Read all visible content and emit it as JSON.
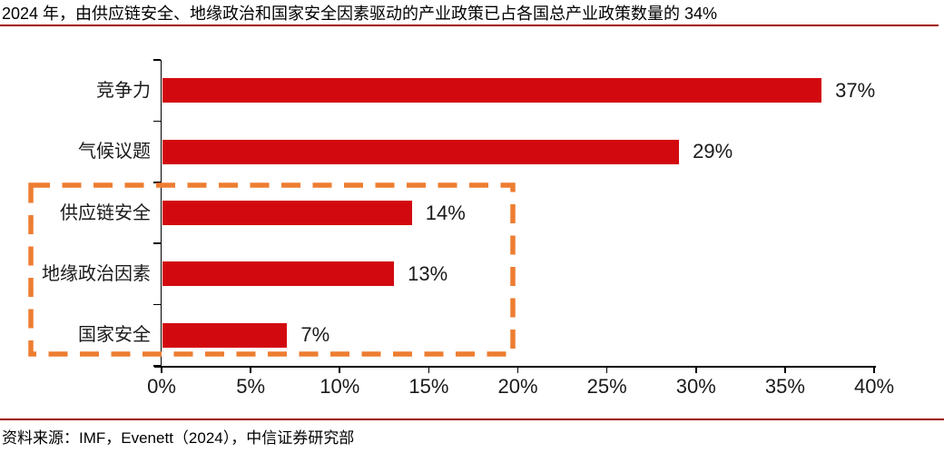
{
  "title": "2024 年，由供应链安全、地缘政治和国家安全因素驱动的产业政策已占各国总产业政策数量的 34%",
  "source_note": "资料来源：IMF，Evenett（2024），中信证券研究部",
  "colors": {
    "bar": "#d20a10",
    "accent_rule": "#a00000",
    "highlight_box": "#ed7d31",
    "axis": "#000000",
    "text": "#1a1a1a"
  },
  "chart_data": {
    "type": "bar",
    "orientation": "horizontal",
    "title": "2024 年，由供应链安全、地缘政治和国家安全因素驱动的产业政策已占各国总产业政策数量的 34%",
    "categories": [
      "竞争力",
      "气候议题",
      "供应链安全",
      "地缘政治因素",
      "国家安全"
    ],
    "values": [
      37,
      29,
      14,
      13,
      7
    ],
    "value_labels": [
      "37%",
      "29%",
      "14%",
      "13%",
      "7%"
    ],
    "x_tick_labels": [
      "0%",
      "5%",
      "10%",
      "15%",
      "20%",
      "25%",
      "30%",
      "35%",
      "40%"
    ],
    "xlim": [
      0,
      40
    ],
    "grid": false,
    "legend": "none",
    "highlight": {
      "categories": [
        "供应链安全",
        "地缘政治因素",
        "国家安全"
      ],
      "style": "orange-dashed-box"
    }
  }
}
